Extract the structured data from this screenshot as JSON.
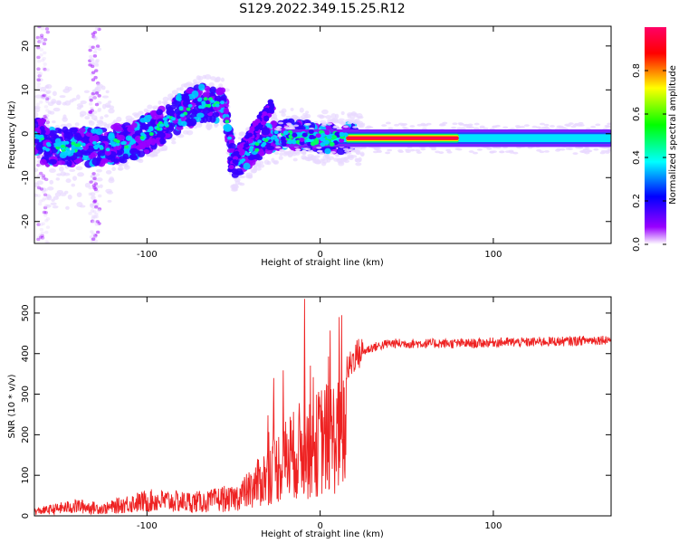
{
  "title": "S129.2022.349.15.25.R12",
  "chart_data": [
    {
      "type": "heatmap",
      "xlabel": "Height of straight line (km)",
      "ylabel": "Frequency (Hz)",
      "xlim": [
        -165,
        168
      ],
      "ylim": [
        -25,
        24.5
      ],
      "xticks": [
        -100,
        0,
        100
      ],
      "yticks": [
        -20,
        -10,
        0,
        10,
        20
      ],
      "colorbar": {
        "label": "Normalized spectral amplitude",
        "range": [
          0.0,
          1.0
        ],
        "ticks": [
          0.0,
          0.2,
          0.4,
          0.6,
          0.8
        ],
        "colors": [
          "#ff0066",
          "#ff0000",
          "#ffff00",
          "#00ff00",
          "#00ffff",
          "#0000ff",
          "#9900ff",
          "#ffffff"
        ]
      },
      "ridge": {
        "description_points": [
          {
            "x": -160,
            "y": -3
          },
          {
            "x": -130,
            "y": -3
          },
          {
            "x": -110,
            "y": -2
          },
          {
            "x": -95,
            "y": 1
          },
          {
            "x": -80,
            "y": 5
          },
          {
            "x": -70,
            "y": 7
          },
          {
            "x": -55,
            "y": 7
          },
          {
            "x": -50,
            "y": -7
          },
          {
            "x": -40,
            "y": -4
          },
          {
            "x": -30,
            "y": -1
          },
          {
            "x": -20,
            "y": 0
          },
          {
            "x": 0,
            "y": -1
          },
          {
            "x": 80,
            "y": -1
          },
          {
            "x": 168,
            "y": -0.5
          }
        ],
        "strong_band": {
          "x_start": 15,
          "x_end": 80,
          "frequency": -1
        }
      }
    },
    {
      "type": "line",
      "xlabel": "Height of straight line (km)",
      "ylabel": "SNR (10 * v/v)",
      "xlim": [
        -165,
        168
      ],
      "ylim": [
        0,
        540
      ],
      "xticks": [
        -100,
        0,
        100
      ],
      "yticks": [
        0,
        100,
        200,
        300,
        400,
        500
      ],
      "color": "#ee2222",
      "series": [
        {
          "x": [
            -165,
            -140,
            -125,
            -110,
            -95,
            -80,
            -65,
            -50,
            -40,
            -30,
            -25,
            -20,
            -15,
            -10,
            -5,
            0,
            5,
            10,
            15,
            20,
            25,
            30,
            40,
            50,
            60,
            70,
            80,
            90,
            100,
            110,
            120,
            130,
            140,
            150,
            160,
            168
          ],
          "y": [
            15,
            35,
            25,
            45,
            55,
            50,
            50,
            70,
            110,
            170,
            200,
            230,
            250,
            280,
            260,
            310,
            320,
            330,
            350,
            395,
            405,
            415,
            425,
            425,
            425,
            425,
            425,
            425,
            428,
            428,
            428,
            430,
            430,
            432,
            434,
            435
          ]
        }
      ],
      "annotations": [
        {
          "x": -9,
          "y": 535
        },
        {
          "x": 11,
          "y": 490
        }
      ]
    }
  ]
}
